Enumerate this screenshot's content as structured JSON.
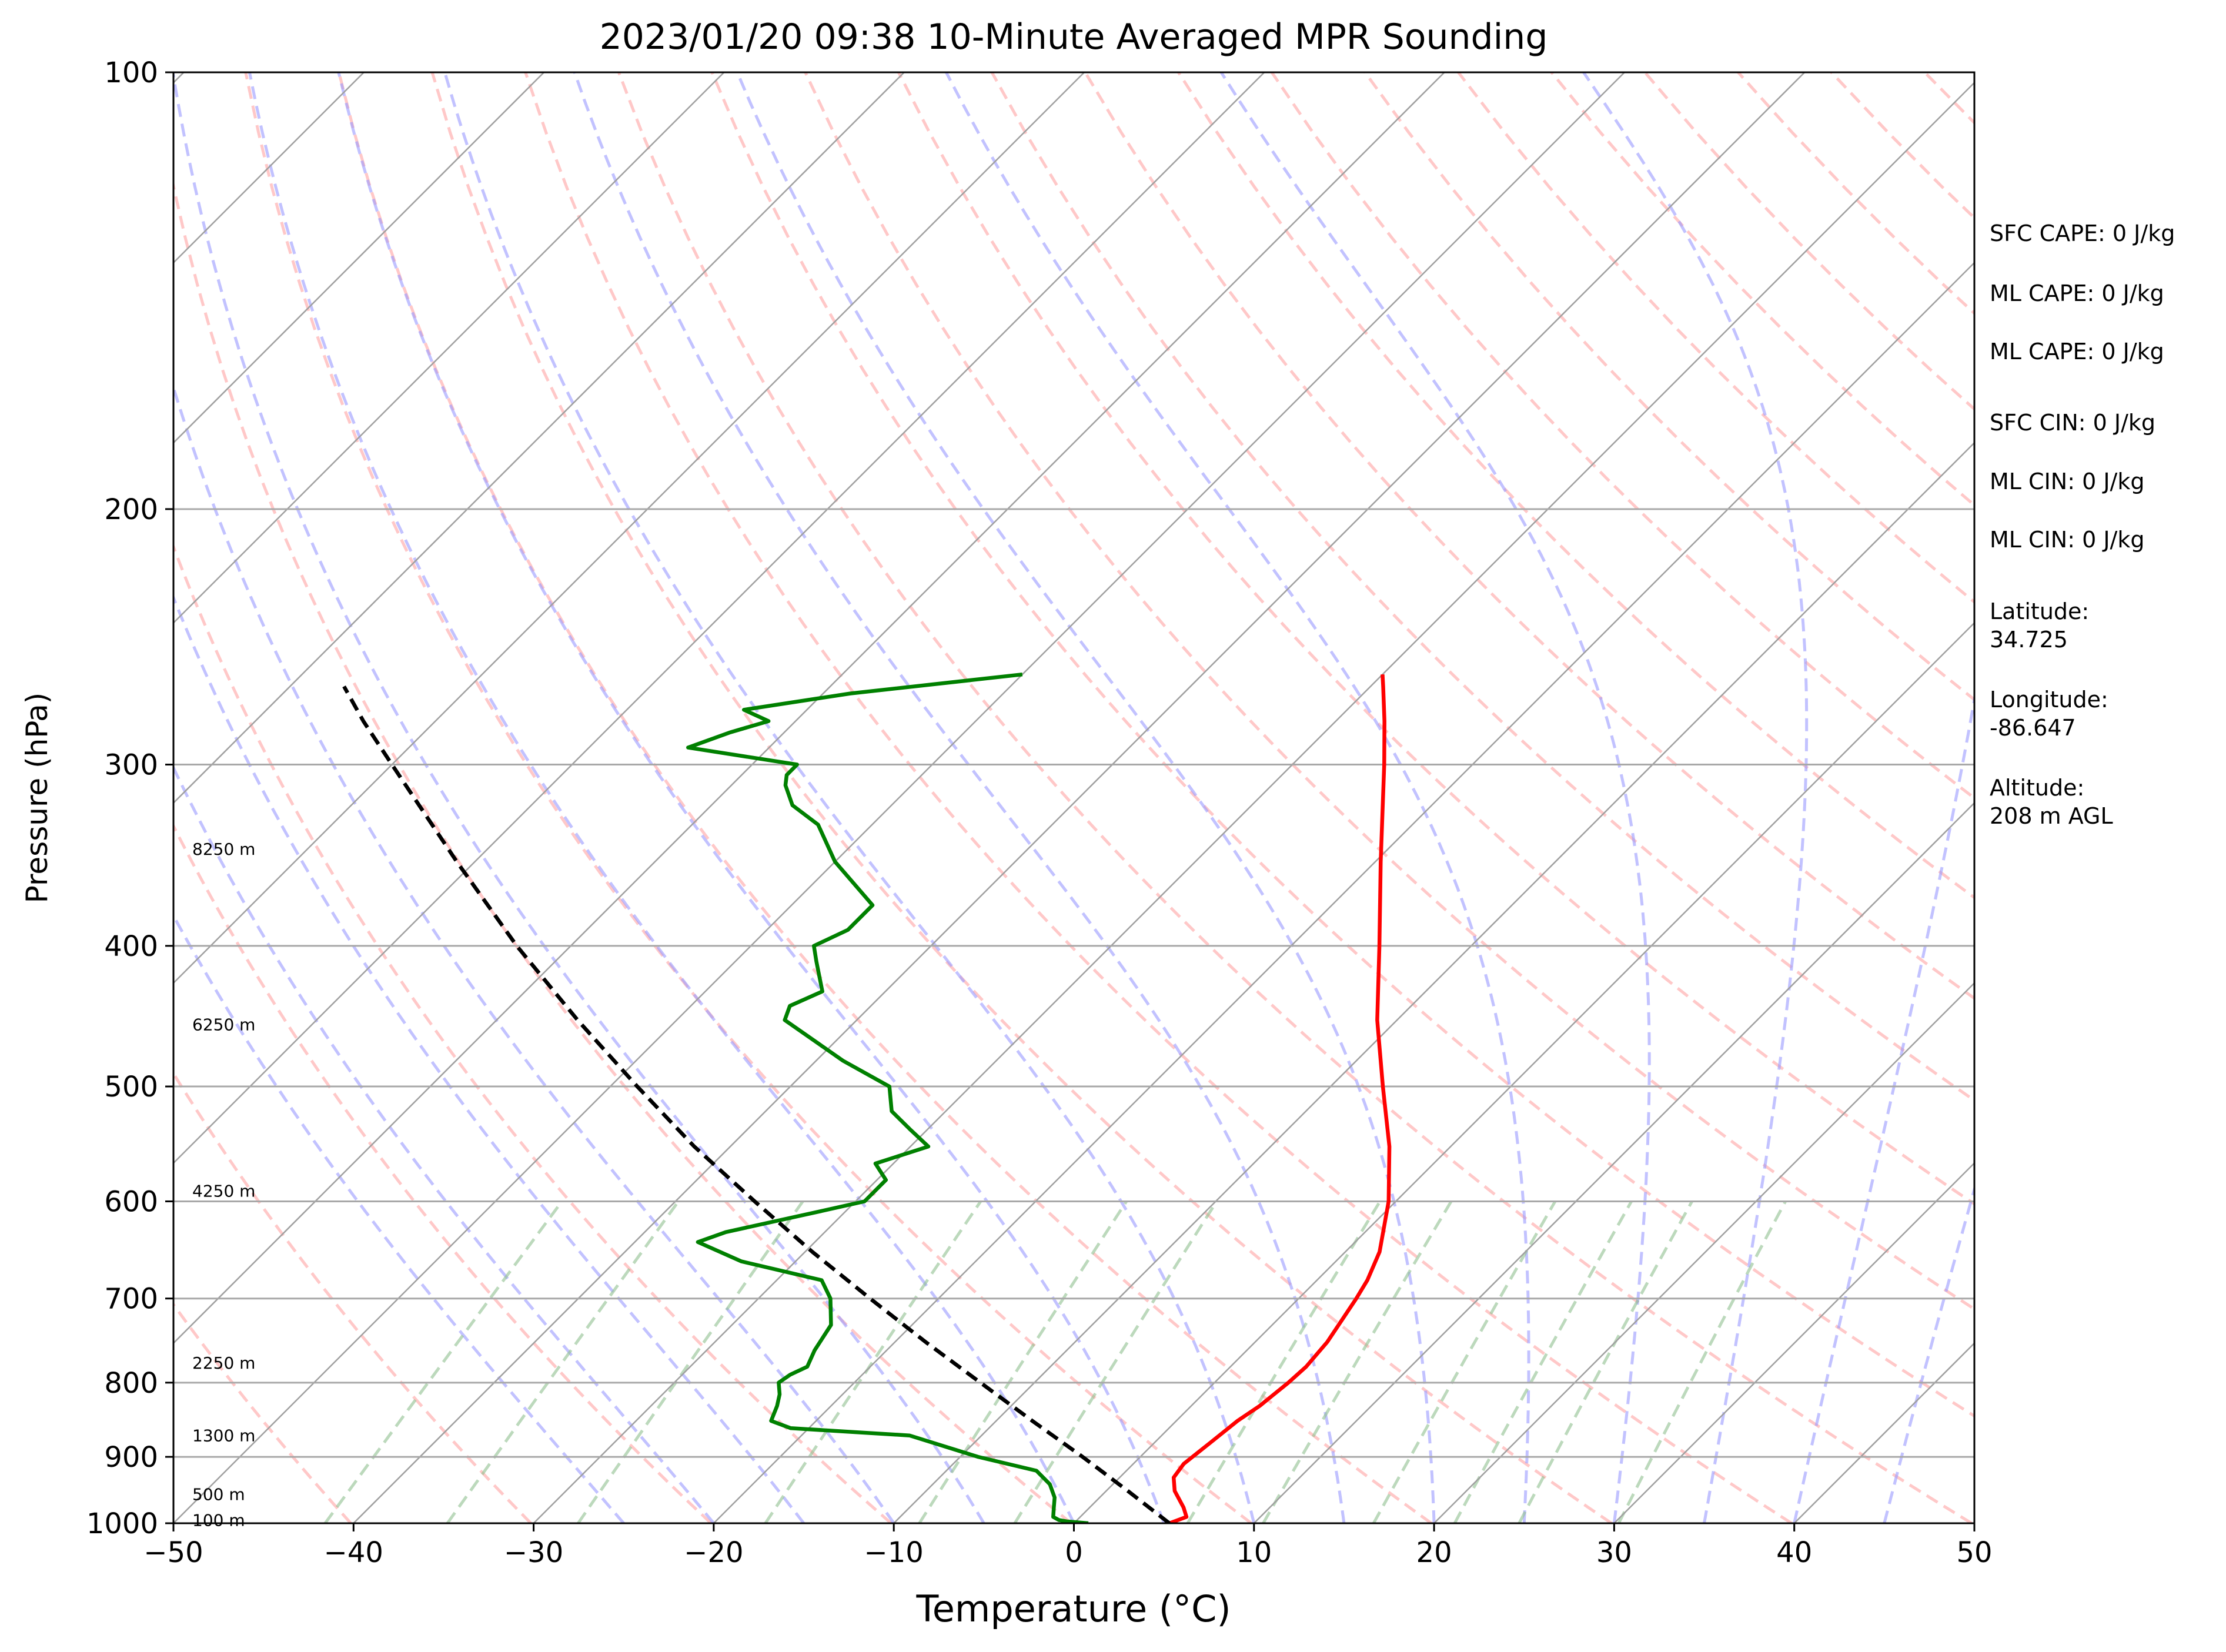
{
  "chart_data": {
    "type": "line",
    "title": "2023/01/20 09:38 10-Minute Averaged MPR Sounding",
    "xlabel": "Temperature (°C)",
    "ylabel": "Pressure (hPa)",
    "xlim": [
      -50,
      50
    ],
    "ylim": [
      1000,
      100
    ],
    "y_scale": "log",
    "x_ticks": [
      "−50",
      "−40",
      "−30",
      "−20",
      "−10",
      "0",
      "10",
      "20",
      "30",
      "40",
      "50"
    ],
    "y_ticks": [
      "100",
      "200",
      "300",
      "400",
      "500",
      "600",
      "700",
      "800",
      "900",
      "1000"
    ],
    "y_tick_values": [
      100,
      200,
      300,
      400,
      500,
      600,
      700,
      800,
      900,
      1000
    ],
    "height_labels": [
      {
        "text": "8250 m",
        "p": 343
      },
      {
        "text": "6250 m",
        "p": 453
      },
      {
        "text": "4250 m",
        "p": 590
      },
      {
        "text": "2250 m",
        "p": 775
      },
      {
        "text": "1300 m",
        "p": 870
      },
      {
        "text": "500 m",
        "p": 955
      },
      {
        "text": "100 m",
        "p": 995
      }
    ],
    "series": [
      {
        "color": "#ff0000",
        "values": [
          [
            1000,
            5.3
          ],
          [
            990,
            5.9
          ],
          [
            975,
            5.2
          ],
          [
            950,
            3.8
          ],
          [
            930,
            3.0
          ],
          [
            910,
            2.8
          ],
          [
            880,
            3.1
          ],
          [
            850,
            3.4
          ],
          [
            830,
            3.8
          ],
          [
            800,
            4.1
          ],
          [
            780,
            4.2
          ],
          [
            750,
            4.0
          ],
          [
            700,
            3.2
          ],
          [
            680,
            2.8
          ],
          [
            650,
            1.9
          ],
          [
            600,
            -0.4
          ],
          [
            550,
            -3.4
          ],
          [
            500,
            -7.1
          ],
          [
            450,
            -11.1
          ],
          [
            400,
            -15.1
          ],
          [
            350,
            -19.7
          ],
          [
            300,
            -24.9
          ],
          [
            280,
            -27.3
          ],
          [
            265,
            -29.3
          ],
          [
            260,
            -30.0
          ]
        ]
      },
      {
        "color": "#008000",
        "values": [
          [
            1000,
            0.8
          ],
          [
            997,
            -0.5
          ],
          [
            995,
            -1.0
          ],
          [
            990,
            -1.5
          ],
          [
            975,
            -2.0
          ],
          [
            960,
            -2.5
          ],
          [
            940,
            -3.5
          ],
          [
            920,
            -5.0
          ],
          [
            900,
            -9.0
          ],
          [
            870,
            -14.0
          ],
          [
            860,
            -21.0
          ],
          [
            850,
            -22.5
          ],
          [
            830,
            -23.0
          ],
          [
            815,
            -23.5
          ],
          [
            800,
            -24.2
          ],
          [
            790,
            -24.0
          ],
          [
            780,
            -23.5
          ],
          [
            760,
            -24.0
          ],
          [
            730,
            -24.5
          ],
          [
            700,
            -26.0
          ],
          [
            680,
            -27.5
          ],
          [
            660,
            -33.0
          ],
          [
            640,
            -36.5
          ],
          [
            630,
            -35.5
          ],
          [
            610,
            -31.5
          ],
          [
            600,
            -29.5
          ],
          [
            580,
            -29.5
          ],
          [
            565,
            -31.0
          ],
          [
            550,
            -29.0
          ],
          [
            535,
            -31.0
          ],
          [
            520,
            -33.0
          ],
          [
            500,
            -34.5
          ],
          [
            480,
            -38.5
          ],
          [
            450,
            -44.0
          ],
          [
            440,
            -44.5
          ],
          [
            430,
            -43.5
          ],
          [
            410,
            -45.5
          ],
          [
            400,
            -46.5
          ],
          [
            390,
            -45.5
          ],
          [
            375,
            -45.5
          ],
          [
            350,
            -50.0
          ],
          [
            330,
            -53.0
          ],
          [
            320,
            -55.5
          ],
          [
            310,
            -57.0
          ],
          [
            305,
            -57.5
          ],
          [
            300,
            -57.5
          ],
          [
            292,
            -64.5
          ],
          [
            285,
            -63.0
          ],
          [
            280,
            -61.5
          ],
          [
            275,
            -63.5
          ],
          [
            268,
            -58.5
          ],
          [
            260,
            -50.0
          ]
        ]
      },
      {
        "color": "#000000",
        "dashed": true,
        "values": [
          [
            1000,
            5.3
          ],
          [
            950,
            1.2
          ],
          [
            900,
            -3.2
          ],
          [
            850,
            -8.0
          ],
          [
            800,
            -13.0
          ],
          [
            750,
            -18.3
          ],
          [
            700,
            -23.8
          ],
          [
            650,
            -29.6
          ],
          [
            600,
            -35.6
          ],
          [
            550,
            -42.0
          ],
          [
            500,
            -48.5
          ],
          [
            450,
            -55.5
          ],
          [
            400,
            -63.0
          ],
          [
            350,
            -71.0
          ],
          [
            300,
            -80.0
          ],
          [
            280,
            -84.0
          ],
          [
            265,
            -87.0
          ]
        ]
      }
    ],
    "background": {
      "isotherm_color": "#a0a0a0",
      "dry_adiabat_color": "#ff9a9a",
      "moist_adiabat_color": "#9a9aff",
      "mixing_ratio_color": "#90c090"
    },
    "legend": "none",
    "grid": true
  },
  "sidebar": {
    "sfc_cape": "SFC CAPE: 0 J/kg",
    "ml_cape_1": "ML CAPE: 0 J/kg",
    "ml_cape_2": "ML CAPE: 0 J/kg",
    "sfc_cin": "SFC CIN: 0 J/kg",
    "ml_cin_1": "ML CIN: 0 J/kg",
    "ml_cin_2": "ML CIN: 0 J/kg",
    "latitude": "Latitude:\n34.725",
    "longitude": "Longitude:\n-86.647",
    "altitude": "Altitude:\n208 m AGL"
  }
}
